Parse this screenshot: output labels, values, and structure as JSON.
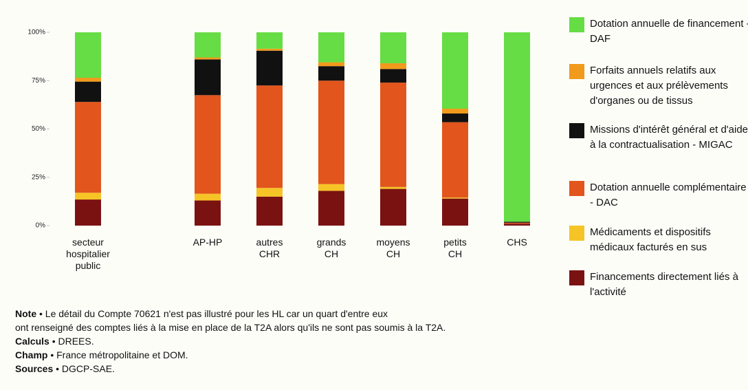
{
  "chart_data": {
    "type": "stacked_bar",
    "categories": [
      "secteur hospitalier public",
      "AP-HP",
      "autres CHR",
      "grands CH",
      "moyens CH",
      "petits CH",
      "CHS"
    ],
    "series": [
      {
        "name": "Dotation annuelle de financement - DAF",
        "color": "#66dd44",
        "values": [
          23.5,
          13,
          8.5,
          15.5,
          16,
          39.5,
          98
        ]
      },
      {
        "name": "Forfaits annuels relatifs aux urgences et aux prélèvements d'organes ou de tissus",
        "color": "#f29a1c",
        "values": [
          2,
          1,
          1,
          2,
          3,
          2.5,
          0
        ]
      },
      {
        "name": "Missions d'intérêt général et d'aide à la contractualisation - MIGAC",
        "color": "#111111",
        "values": [
          10.5,
          18.5,
          18,
          7.5,
          7,
          4.5,
          0.5
        ]
      },
      {
        "name": "Dotation annuelle complémentaire - DAC",
        "color": "#e2551c",
        "values": [
          47,
          51,
          53,
          53.5,
          54,
          39,
          0.5
        ]
      },
      {
        "name": "Médicaments et dispositifs médicaux facturés en sus",
        "color": "#f6c426",
        "values": [
          3.5,
          3.5,
          4.5,
          3.5,
          1,
          0.5,
          0
        ]
      },
      {
        "name": "Financements directement liés à l'activité",
        "color": "#7b1212",
        "values": [
          13.5,
          13,
          15,
          18,
          19,
          14,
          1
        ]
      }
    ],
    "ylim": [
      0,
      100
    ],
    "yticks": [
      {
        "value": 0,
        "label": "0%"
      },
      {
        "value": 25,
        "label": "25%"
      },
      {
        "value": 50,
        "label": "50%"
      },
      {
        "value": 75,
        "label": "75%"
      },
      {
        "value": 100,
        "label": "100%"
      }
    ],
    "grid": false,
    "legend": "right"
  },
  "notes": [
    {
      "label": "Note",
      "lines": [
        "• Le détail du Compte 70621 n'est pas illustré pour les HL car un quart d'entre eux",
        "ont renseigné des comptes liés à la mise en place de la T2A alors qu'ils ne sont pas soumis à la T2A."
      ]
    },
    {
      "label": "Calculs",
      "lines": [
        "• DREES."
      ]
    },
    {
      "label": "Champ",
      "lines": [
        "• France métropolitaine et DOM."
      ]
    },
    {
      "label": "Sources",
      "lines": [
        "• DGCP-SAE."
      ]
    }
  ]
}
